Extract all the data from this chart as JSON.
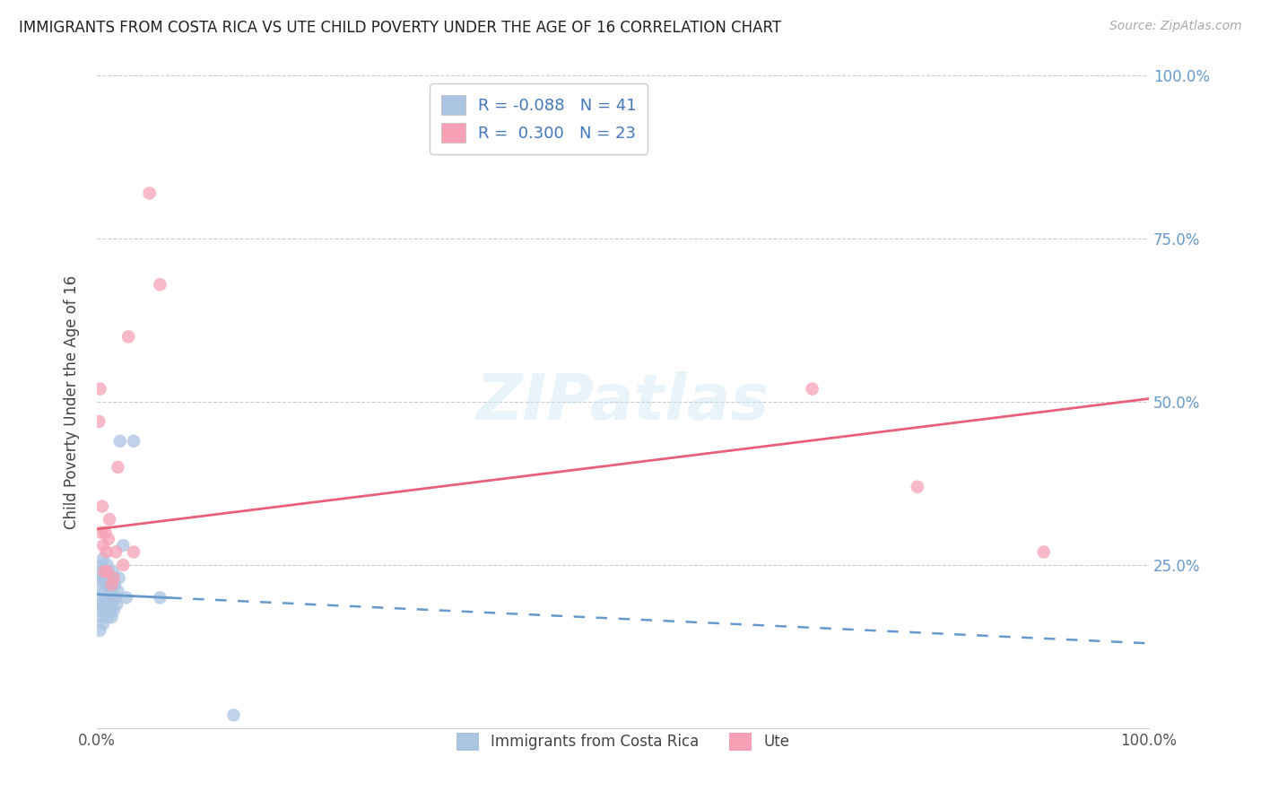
{
  "title": "IMMIGRANTS FROM COSTA RICA VS UTE CHILD POVERTY UNDER THE AGE OF 16 CORRELATION CHART",
  "source": "Source: ZipAtlas.com",
  "ylabel": "Child Poverty Under the Age of 16",
  "xlim": [
    0,
    1.0
  ],
  "ylim": [
    0,
    1.0
  ],
  "ytick_positions": [
    0.25,
    0.5,
    0.75,
    1.0
  ],
  "ytick_labels": [
    "25.0%",
    "50.0%",
    "75.0%",
    "100.0%"
  ],
  "blue_label": "Immigrants from Costa Rica",
  "pink_label": "Ute",
  "blue_R": "-0.088",
  "blue_N": "41",
  "pink_R": "0.300",
  "pink_N": "23",
  "blue_color": "#aac4e2",
  "pink_color": "#f5a0b5",
  "blue_line_color": "#6699cc",
  "pink_line_color": "#e8607a",
  "blue_line_solid_end": 0.07,
  "blue_scatter_x": [
    0.001,
    0.002,
    0.002,
    0.003,
    0.003,
    0.004,
    0.004,
    0.005,
    0.005,
    0.006,
    0.006,
    0.007,
    0.007,
    0.008,
    0.008,
    0.009,
    0.009,
    0.01,
    0.01,
    0.011,
    0.011,
    0.012,
    0.012,
    0.013,
    0.013,
    0.014,
    0.014,
    0.015,
    0.015,
    0.016,
    0.017,
    0.018,
    0.019,
    0.02,
    0.021,
    0.022,
    0.025,
    0.028,
    0.035,
    0.06,
    0.13
  ],
  "blue_scatter_y": [
    0.2,
    0.18,
    0.22,
    0.15,
    0.23,
    0.19,
    0.24,
    0.17,
    0.25,
    0.16,
    0.26,
    0.18,
    0.21,
    0.2,
    0.23,
    0.19,
    0.22,
    0.17,
    0.25,
    0.2,
    0.24,
    0.18,
    0.22,
    0.21,
    0.19,
    0.23,
    0.17,
    0.2,
    0.24,
    0.18,
    0.22,
    0.2,
    0.19,
    0.21,
    0.23,
    0.44,
    0.28,
    0.2,
    0.44,
    0.2,
    0.02
  ],
  "pink_scatter_x": [
    0.002,
    0.003,
    0.004,
    0.005,
    0.006,
    0.007,
    0.008,
    0.009,
    0.01,
    0.011,
    0.012,
    0.014,
    0.016,
    0.018,
    0.02,
    0.025,
    0.03,
    0.035,
    0.05,
    0.06,
    0.68,
    0.78,
    0.9
  ],
  "pink_scatter_y": [
    0.47,
    0.52,
    0.3,
    0.34,
    0.28,
    0.24,
    0.3,
    0.27,
    0.24,
    0.29,
    0.32,
    0.22,
    0.23,
    0.27,
    0.4,
    0.25,
    0.6,
    0.27,
    0.82,
    0.68,
    0.52,
    0.37,
    0.27
  ],
  "blue_line_x0": 0.0,
  "blue_line_y0": 0.205,
  "blue_line_x1": 1.0,
  "blue_line_y1": 0.13,
  "pink_line_x0": 0.0,
  "pink_line_y0": 0.305,
  "pink_line_x1": 1.0,
  "pink_line_y1": 0.505
}
